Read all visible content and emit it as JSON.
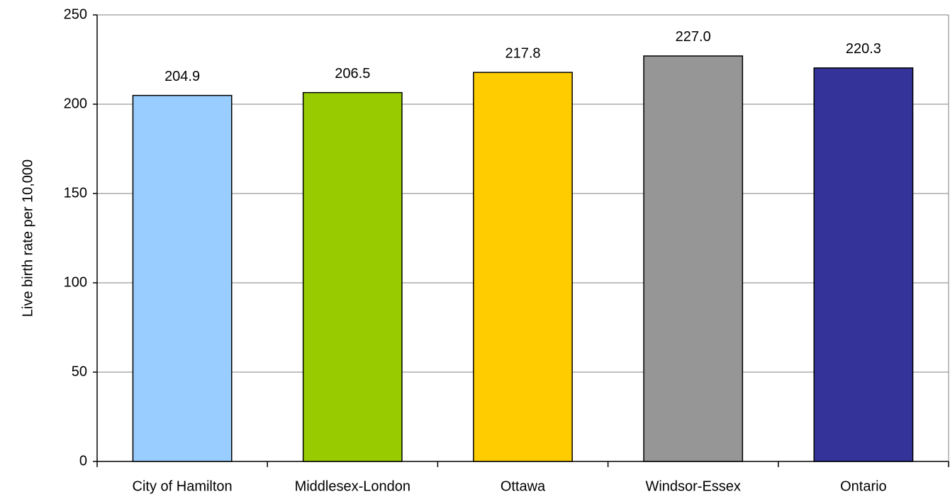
{
  "chart_data": {
    "type": "bar",
    "y_label": "Live birth rate per 10,000",
    "categories": [
      "City of Hamilton",
      "Middlesex-London",
      "Ottawa",
      "Windsor-Essex",
      "Ontario"
    ],
    "values": [
      204.9,
      206.5,
      217.8,
      227,
      220.3
    ],
    "value_labels": [
      "204.9",
      "206.5",
      "217.8",
      "227.0",
      "220.3"
    ],
    "colors": [
      "#99ccff",
      "#99cc00",
      "#ffcc00",
      "#969696",
      "#333399"
    ],
    "ylim": [
      0,
      250
    ],
    "yticks": [
      0,
      50,
      100,
      150,
      200,
      250
    ],
    "grid": true
  }
}
